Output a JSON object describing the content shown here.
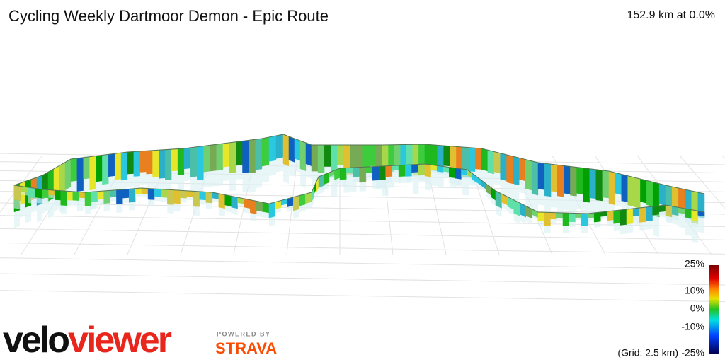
{
  "header": {
    "title": "Cycling Weekly Dartmoor Demon - Epic Route",
    "stats": "152.9 km at 0.0%"
  },
  "legend": {
    "labels": [
      "25%",
      "10%",
      "0%",
      "-10%",
      "-25%"
    ],
    "grid_note": "(Grid: 2.5 km)"
  },
  "logo": {
    "velo": "velo",
    "viewer": "viewer",
    "powered_by": "POWERED BY",
    "strava": "STRAVA"
  }
}
